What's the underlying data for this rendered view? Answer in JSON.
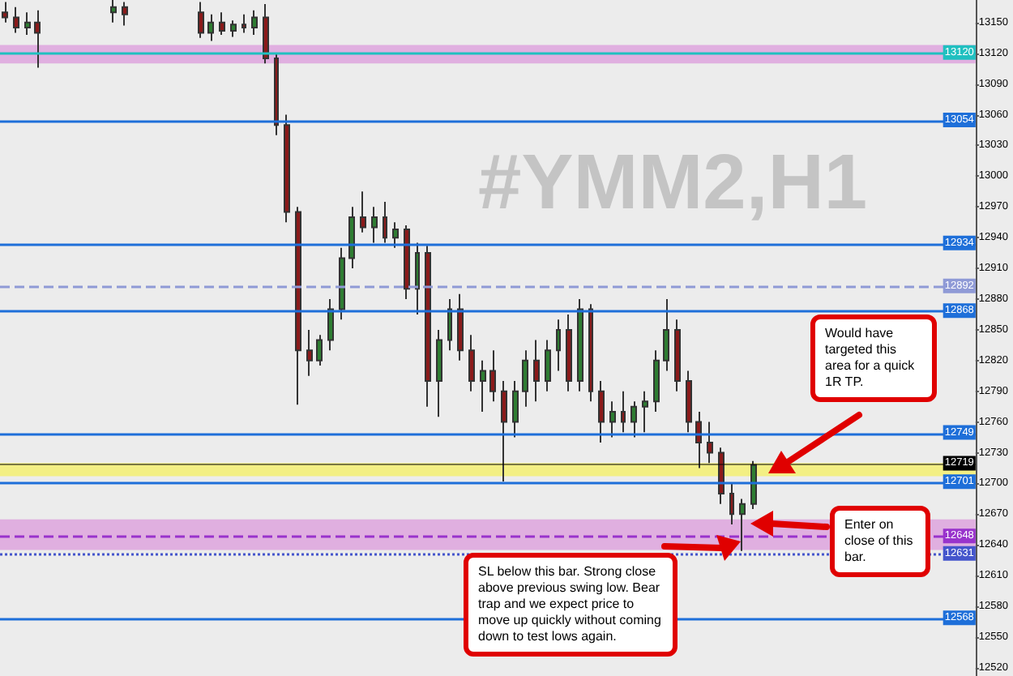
{
  "chart_data": {
    "type": "candlestick",
    "title": "#YMM2,H1",
    "categories": [
      null,
      null,
      null,
      null,
      null,
      null,
      null,
      null,
      null,
      null,
      null,
      null,
      null,
      null,
      null,
      null,
      null,
      null,
      null,
      null,
      null,
      null,
      null,
      null,
      null,
      null,
      null,
      null,
      null,
      null,
      null,
      null,
      null,
      null,
      null,
      null,
      null,
      null,
      null,
      null,
      null,
      null,
      null,
      null,
      null,
      null,
      null,
      null,
      null,
      null,
      null,
      null,
      null,
      null,
      null,
      null,
      null,
      null,
      null,
      null,
      null,
      null,
      null,
      null,
      null,
      null,
      null,
      null,
      null,
      null,
      null,
      null,
      null,
      null,
      null,
      null,
      null,
      null,
      null,
      null,
      null,
      null,
      null,
      null,
      null,
      null,
      null,
      null,
      null,
      null
    ],
    "ohlc": [
      [
        13160,
        13170,
        13150,
        13155
      ],
      [
        13155,
        13165,
        13140,
        13145
      ],
      [
        13145,
        13160,
        13138,
        13150
      ],
      [
        13150,
        13162,
        13106,
        13140
      ],
      null,
      null,
      null,
      null,
      null,
      null,
      [
        13160,
        13172,
        13150,
        13165
      ],
      [
        13165,
        13170,
        13147,
        13158
      ],
      null,
      null,
      null,
      null,
      null,
      null,
      [
        13160,
        13170,
        13135,
        13140
      ],
      [
        13140,
        13158,
        13132,
        13150
      ],
      [
        13150,
        13160,
        13138,
        13142
      ],
      [
        13142,
        13152,
        13136,
        13148
      ],
      [
        13148,
        13158,
        13140,
        13145
      ],
      [
        13145,
        13162,
        13138,
        13155
      ],
      [
        13155,
        13168,
        13110,
        13115
      ],
      [
        13115,
        13120,
        13040,
        13050
      ],
      [
        13050,
        13060,
        12955,
        12965
      ],
      [
        12965,
        12970,
        12777,
        12830
      ],
      [
        12830,
        12850,
        12805,
        12820
      ],
      [
        12820,
        12845,
        12815,
        12840
      ],
      [
        12840,
        12880,
        12830,
        12870
      ],
      [
        12870,
        12930,
        12860,
        12920
      ],
      [
        12920,
        12970,
        12910,
        12960
      ],
      [
        12960,
        12985,
        12945,
        12950
      ],
      [
        12950,
        12970,
        12935,
        12960
      ],
      [
        12960,
        12975,
        12935,
        12940
      ],
      [
        12940,
        12955,
        12930,
        12948
      ],
      [
        12948,
        12952,
        12880,
        12890
      ],
      [
        12890,
        12935,
        12865,
        12925
      ],
      [
        12925,
        12932,
        12775,
        12800
      ],
      [
        12800,
        12850,
        12765,
        12840
      ],
      [
        12840,
        12880,
        12830,
        12870
      ],
      [
        12870,
        12885,
        12820,
        12830
      ],
      [
        12830,
        12845,
        12790,
        12800
      ],
      [
        12800,
        12820,
        12770,
        12810
      ],
      [
        12810,
        12830,
        12780,
        12790
      ],
      [
        12790,
        12800,
        12702,
        12760
      ],
      [
        12760,
        12800,
        12745,
        12790
      ],
      [
        12790,
        12830,
        12775,
        12820
      ],
      [
        12820,
        12840,
        12780,
        12800
      ],
      [
        12800,
        12840,
        12790,
        12830
      ],
      [
        12830,
        12860,
        12810,
        12850
      ],
      [
        12850,
        12865,
        12790,
        12800
      ],
      [
        12800,
        12880,
        12790,
        12870
      ],
      [
        12870,
        12875,
        12780,
        12790
      ],
      [
        12790,
        12800,
        12740,
        12760
      ],
      [
        12760,
        12780,
        12745,
        12770
      ],
      [
        12770,
        12790,
        12750,
        12760
      ],
      [
        12760,
        12780,
        12745,
        12775
      ],
      [
        12775,
        12790,
        12750,
        12780
      ],
      [
        12780,
        12830,
        12770,
        12820
      ],
      [
        12820,
        12880,
        12810,
        12850
      ],
      [
        12850,
        12860,
        12790,
        12800
      ],
      [
        12800,
        12810,
        12750,
        12760
      ],
      [
        12760,
        12770,
        12715,
        12740
      ],
      [
        12740,
        12760,
        12720,
        12730
      ],
      [
        12730,
        12735,
        12680,
        12690
      ],
      [
        12690,
        12700,
        12660,
        12670
      ],
      [
        12670,
        12685,
        12634,
        12680
      ],
      [
        12680,
        12722,
        12675,
        12718
      ],
      null,
      null,
      null,
      null,
      null,
      null,
      null,
      null,
      null,
      null,
      null,
      null,
      null,
      null,
      null,
      null,
      null,
      null,
      null,
      null
    ],
    "ylim": [
      12512,
      13172
    ],
    "yticks": [
      12520,
      12550,
      12580,
      12610,
      12640,
      12670,
      12700,
      12730,
      12760,
      12790,
      12820,
      12850,
      12880,
      12910,
      12940,
      12970,
      13000,
      13030,
      13060,
      13090,
      13120,
      13150
    ],
    "tick_labels": "y",
    "grid": false,
    "ref_lines": [
      {
        "axis": "y",
        "value": 13120,
        "label": "13120",
        "color": "#20c0c0",
        "line_style": "solid"
      },
      {
        "axis": "y",
        "value": 13054,
        "label": "13054",
        "color": "#1e6fd9",
        "line_style": "solid"
      },
      {
        "axis": "y",
        "value": 12934,
        "label": "12934",
        "color": "#1e6fd9",
        "line_style": "solid"
      },
      {
        "axis": "y",
        "value": 12892,
        "label": "12892",
        "color": "#8f9ad6",
        "line_style": "dashed"
      },
      {
        "axis": "y",
        "value": 12868,
        "label": "12868",
        "color": "#1e6fd9",
        "line_style": "solid"
      },
      {
        "axis": "y",
        "value": 12749,
        "label": "12749",
        "color": "#1e6fd9",
        "line_style": "solid"
      },
      {
        "axis": "y",
        "value": 12719,
        "label": "12719",
        "color": "#000000",
        "line_style": "solid"
      },
      {
        "axis": "y",
        "value": 12701,
        "label": "12701",
        "color": "#1e6fd9",
        "line_style": "solid"
      },
      {
        "axis": "y",
        "value": 12648,
        "label": "12648",
        "color": "#9933cc",
        "line_style": "dashed"
      },
      {
        "axis": "y",
        "value": 12631,
        "label": "12631",
        "color": "#4455cc",
        "line_style": "dotted"
      },
      {
        "axis": "y",
        "value": 12568,
        "label": "12568",
        "color": "#1e6fd9",
        "line_style": "solid"
      }
    ],
    "bands": [
      {
        "axis": "y",
        "from": 13110,
        "to": 13128,
        "color": "#dda0dd"
      },
      {
        "axis": "y",
        "from": 12635,
        "to": 12665,
        "color": "#dda0dd"
      },
      {
        "axis": "y",
        "from": 12707,
        "to": 12720,
        "color": "#f5f06a"
      }
    ],
    "annotations": [
      "Would have targeted this area for a quick 1R TP.",
      "Enter on close of this bar.",
      "SL below this bar. Strong close above previous swing low. Bear trap and we expect price to move up quickly without coming down to test lows again."
    ]
  }
}
